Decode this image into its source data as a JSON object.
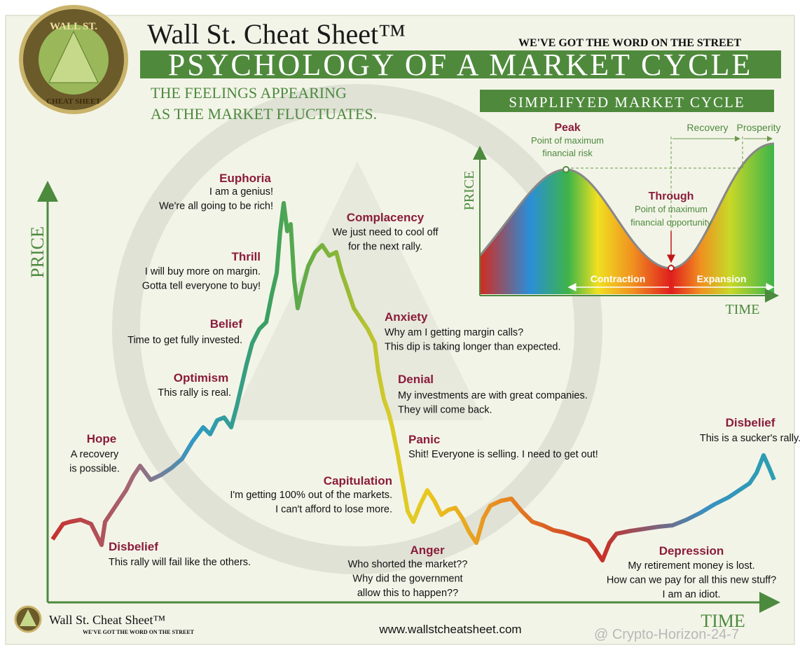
{
  "header": {
    "title": "Wall St. Cheat Sheet™",
    "tagline": "WE'VE GOT THE WORD ON THE STREET",
    "banner": "PSYCHOLOGY OF A MARKET CYCLE",
    "subtitle": [
      "THE FEELINGS APPEARING",
      "AS THE MARKET FLUCTUATES."
    ]
  },
  "logo": {
    "top": "WALL ST.",
    "bottom": "CHEAT SHEET"
  },
  "axes": {
    "y": "PRICE",
    "x": "TIME"
  },
  "stages": [
    {
      "label": "Euphoria",
      "lines": [
        "I am a genius!",
        "We're all going to be rich!"
      ]
    },
    {
      "label": "Thrill",
      "lines": [
        "I will buy more on margin.",
        "Gotta tell everyone to buy!"
      ]
    },
    {
      "label": "Belief",
      "lines": [
        "Time to get fully invested."
      ]
    },
    {
      "label": "Optimism",
      "lines": [
        "This rally is real."
      ]
    },
    {
      "label": "Hope",
      "lines": [
        "A recovery",
        "is possible."
      ]
    },
    {
      "label": "Disbelief",
      "lines": [
        "This rally will fail like the others."
      ]
    },
    {
      "label": "Complacency",
      "lines": [
        "We just need to cool off",
        "for the next rally."
      ]
    },
    {
      "label": "Anxiety",
      "lines": [
        "Why am I getting margin calls?",
        "This dip is taking longer than expected."
      ]
    },
    {
      "label": "Denial",
      "lines": [
        "My investments are with great companies.",
        "They will come back."
      ]
    },
    {
      "label": "Panic",
      "lines": [
        "Shit! Everyone is selling. I need to get out!"
      ]
    },
    {
      "label": "Capitulation",
      "lines": [
        "I'm getting 100% out of the markets.",
        "I can't afford to lose more."
      ]
    },
    {
      "label": "Anger",
      "lines": [
        "Who shorted the market??",
        "Why did the government",
        "allow this to happen??"
      ]
    },
    {
      "label": "Depression",
      "lines": [
        "My retirement money is lost.",
        "How can we pay for all this new stuff?",
        "I am an idiot."
      ]
    },
    {
      "label": "Disbelief",
      "lines": [
        "This is a sucker's rally."
      ]
    }
  ],
  "inset": {
    "title": "SIMPLIFYED MARKET CYCLE",
    "y_label": "PRICE",
    "x_label": "TIME",
    "peak": {
      "label": "Peak",
      "lines": [
        "Point of maximum",
        "financial risk"
      ]
    },
    "trough": {
      "label": "Through",
      "lines": [
        "Point of maximum",
        "financial opportunity"
      ]
    },
    "phases": [
      "Contraction",
      "Expansion",
      "Recovery",
      "Prosperity"
    ]
  },
  "footer": {
    "brand": "Wall St. Cheat Sheet™",
    "tagline": "WE'VE GOT THE WORD ON THE STREET",
    "url": "www.wallstcheatsheet.com",
    "watermark": "@ Crypto-Horizon-24-7"
  }
}
